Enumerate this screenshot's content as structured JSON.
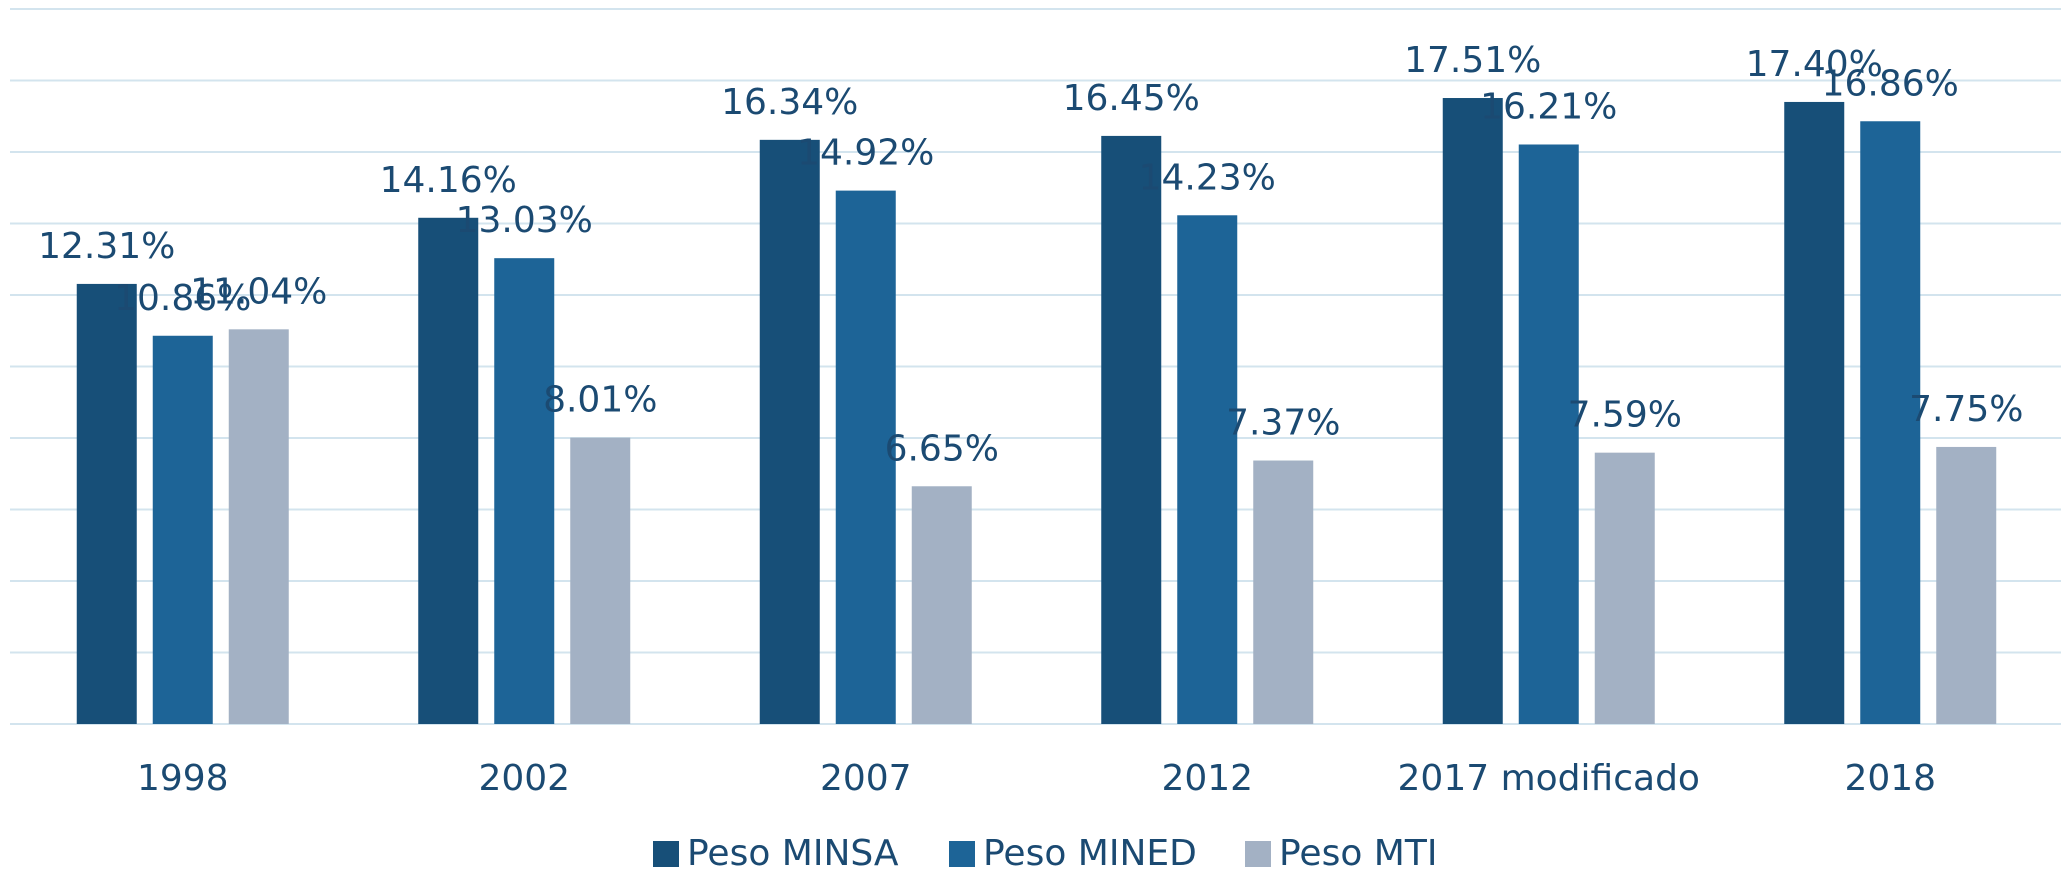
{
  "chart_data": {
    "type": "bar",
    "categories": [
      "1998",
      "2002",
      "2007",
      "2012",
      "2017 modificado",
      "2018"
    ],
    "series": [
      {
        "name": "Peso MINSA",
        "color": "#174f78",
        "values": [
          12.31,
          14.16,
          16.34,
          16.45,
          17.51,
          17.4
        ],
        "value_labels": [
          "12.31%",
          "14.16%",
          "16.34%",
          "16.45%",
          "17.51%",
          "17.40%"
        ]
      },
      {
        "name": "Peso MINED",
        "color": "#1d6497",
        "values": [
          10.86,
          13.03,
          14.92,
          14.23,
          16.21,
          16.86
        ],
        "value_labels": [
          "10.86%",
          "13.03%",
          "14.92%",
          "14.23%",
          "16.21%",
          "16.86%"
        ]
      },
      {
        "name": "Peso MTI",
        "color": "#a3b1c4",
        "values": [
          11.04,
          8.01,
          6.65,
          7.37,
          7.59,
          7.75
        ],
        "value_labels": [
          "11.04%",
          "8.01%",
          "6.65%",
          "7.37%",
          "7.59%",
          "7.75%"
        ]
      }
    ],
    "ylim": [
      0,
      20
    ],
    "yticks": [
      0,
      2,
      4,
      6,
      8,
      10,
      12,
      14,
      16,
      18,
      20
    ],
    "grid": true,
    "legend": "bottom"
  }
}
